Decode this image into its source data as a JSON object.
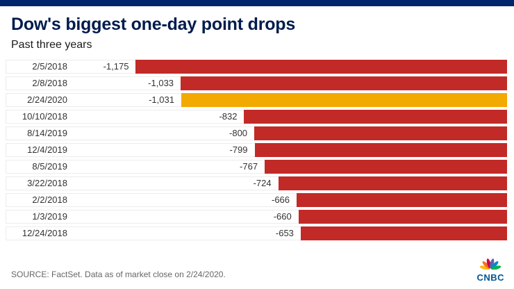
{
  "topbar": {
    "color": "#03256c"
  },
  "header": {
    "title": "Dow's biggest one-day point drops",
    "subtitle": "Past three years",
    "title_color": "#021b4d"
  },
  "chart_data": {
    "type": "bar",
    "orientation": "horizontal-right-aligned",
    "title": "Dow's biggest one-day point drops",
    "subtitle": "Past three years",
    "categories": [
      "2/5/2018",
      "2/8/2018",
      "2/24/2020",
      "10/10/2018",
      "8/14/2019",
      "12/4/2019",
      "8/5/2019",
      "3/22/2018",
      "2/2/2018",
      "1/3/2019",
      "12/24/2018"
    ],
    "values": [
      -1175,
      -1033,
      -1031,
      -832,
      -800,
      -799,
      -767,
      -724,
      -666,
      -660,
      -653
    ],
    "value_labels": [
      "-1,175",
      "-1,033",
      "-1,031",
      "-832",
      "-800",
      "-799",
      "-767",
      "-724",
      "-666",
      "-660",
      "-653"
    ],
    "highlight_index": 2,
    "bar_color": "#c22a27",
    "highlight_color": "#f2a900",
    "xlim": [
      0,
      1175
    ],
    "legend": "none",
    "grid": "row-borders"
  },
  "footer": {
    "source": "SOURCE: FactSet. Data as of market close on 2/24/2020.",
    "logo": "CNBC",
    "peacock_colors": [
      "#fdb913",
      "#f37021",
      "#cc004c",
      "#6460aa",
      "#0089d0",
      "#0db14b"
    ]
  }
}
